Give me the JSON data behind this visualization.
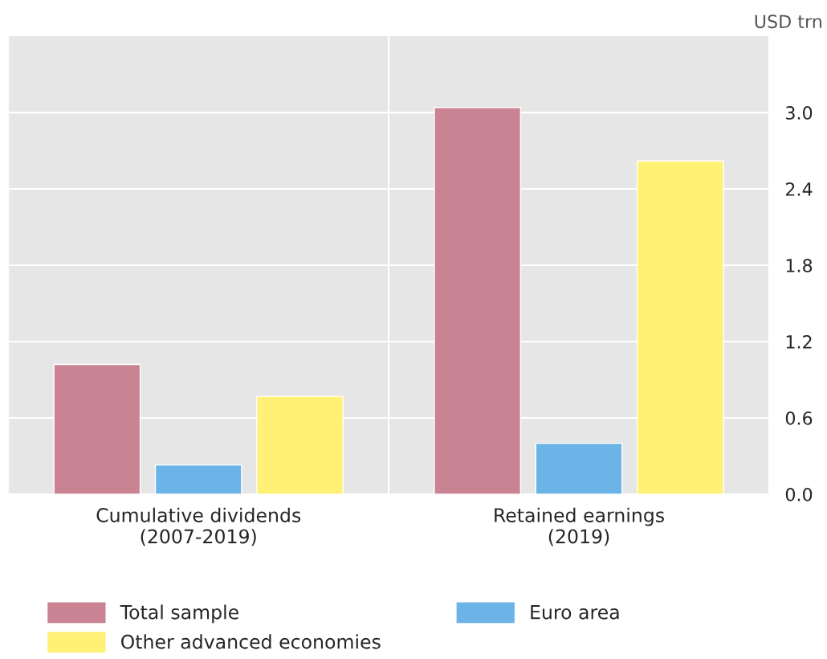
{
  "chart_data": {
    "type": "bar",
    "categories": [
      "Cumulative dividends\n(2007-2019)",
      "Retained earnings\n(2019)"
    ],
    "series": [
      {
        "name": "Total sample",
        "color": "#c98393",
        "values": [
          1.02,
          3.04
        ]
      },
      {
        "name": "Euro area",
        "color": "#6cb4e8",
        "values": [
          0.23,
          0.4
        ]
      },
      {
        "name": "Other advanced economies",
        "color": "#fff176",
        "values": [
          0.77,
          2.62
        ]
      }
    ],
    "ylim": [
      0,
      3.6
    ],
    "yticks": [
      {
        "value": 0,
        "label": "0.0"
      },
      0.6,
      1.2,
      1.8,
      2.4,
      {
        "value": 3,
        "label": "3.0"
      }
    ],
    "grid": true,
    "legend": "bottom",
    "annotations": [
      "USD trn"
    ]
  }
}
